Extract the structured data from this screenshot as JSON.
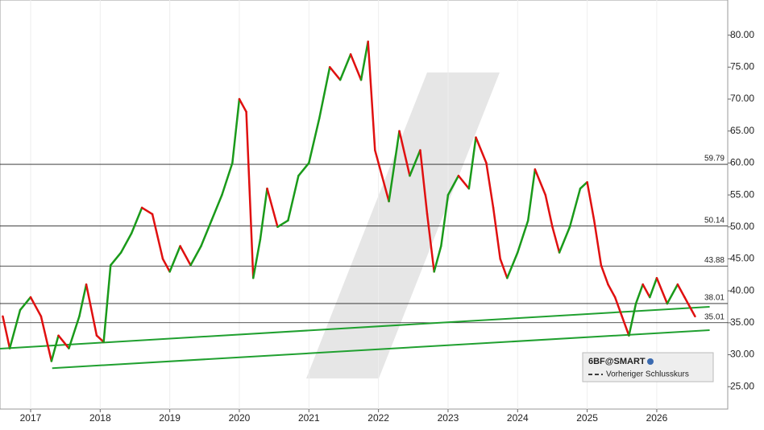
{
  "chart_data": {
    "type": "line",
    "legend_title": "6BF@SMART",
    "legend_item": "Vorheriger Schlusskurs",
    "x": [
      2016.6,
      2016.7,
      2016.85,
      2017.0,
      2017.15,
      2017.3,
      2017.4,
      2017.55,
      2017.7,
      2017.8,
      2017.95,
      2018.05,
      2018.15,
      2018.3,
      2018.45,
      2018.6,
      2018.75,
      2018.9,
      2019.0,
      2019.15,
      2019.3,
      2019.45,
      2019.6,
      2019.75,
      2019.9,
      2020.0,
      2020.1,
      2020.2,
      2020.3,
      2020.4,
      2020.55,
      2020.7,
      2020.85,
      2021.0,
      2021.15,
      2021.3,
      2021.45,
      2021.6,
      2021.75,
      2021.85,
      2021.95,
      2022.05,
      2022.15,
      2022.3,
      2022.45,
      2022.6,
      2022.7,
      2022.8,
      2022.9,
      2023.0,
      2023.15,
      2023.3,
      2023.4,
      2023.55,
      2023.65,
      2023.75,
      2023.85,
      2024.0,
      2024.15,
      2024.25,
      2024.4,
      2024.5,
      2024.6,
      2024.75,
      2024.9,
      2025.0,
      2025.1,
      2025.2,
      2025.3,
      2025.4,
      2025.5,
      2025.6,
      2025.7,
      2025.8,
      2025.9,
      2026.0,
      2026.15,
      2026.3,
      2026.4,
      2026.5,
      2026.55
    ],
    "series": [
      {
        "name": "6BF@SMART",
        "up_color": "#1a9a1a",
        "down_color": "#e01010",
        "values": [
          36,
          31,
          37,
          39,
          36,
          29,
          33,
          31,
          36,
          41,
          33,
          32,
          44,
          46,
          49,
          53,
          52,
          45,
          43,
          47,
          44,
          47,
          51,
          55,
          60,
          70,
          68,
          42,
          48,
          56,
          50,
          51,
          58,
          60,
          67,
          75,
          73,
          77,
          73,
          79,
          62,
          58,
          54,
          65,
          58,
          62,
          52,
          43,
          47,
          55,
          58,
          56,
          64,
          60,
          53,
          45,
          42,
          46,
          51,
          59,
          55,
          50,
          46,
          50,
          56,
          57,
          51,
          44,
          41,
          39,
          36,
          33,
          38,
          41,
          39,
          42,
          38,
          41,
          39,
          37,
          36
        ]
      }
    ],
    "levels": [
      {
        "value": 59.79,
        "label": "59.79"
      },
      {
        "value": 50.14,
        "label": "50.14"
      },
      {
        "value": 43.88,
        "label": "43.88"
      },
      {
        "value": 38.01,
        "label": "38.01"
      },
      {
        "value": 35.01,
        "label": "35.01"
      }
    ],
    "trendlines": [
      {
        "x": [
          2016.56,
          2026.76
        ],
        "values": [
          30.95,
          37.5
        ]
      },
      {
        "x": [
          2017.31,
          2026.76
        ],
        "values": [
          27.9,
          33.85
        ]
      }
    ],
    "trend_color": "#20a030",
    "xlim": [
      2016.56,
      2027.02
    ],
    "xticks": [
      2017,
      2018,
      2019,
      2020,
      2021,
      2022,
      2023,
      2024,
      2025,
      2026
    ],
    "ylim": [
      21.5,
      85.5
    ],
    "yticks": [
      {
        "value": 25,
        "label": "25.00"
      },
      {
        "value": 30,
        "label": "30.00"
      },
      {
        "value": 35,
        "label": "35.00"
      },
      {
        "value": 40,
        "label": "40.00"
      },
      {
        "value": 45,
        "label": "45.00"
      },
      {
        "value": 50,
        "label": "50.00"
      },
      {
        "value": 55,
        "label": "55.00"
      },
      {
        "value": 60,
        "label": "60.00"
      },
      {
        "value": 65,
        "label": "65.00"
      },
      {
        "value": 70,
        "label": "70.00"
      },
      {
        "value": 75,
        "label": "75.00"
      },
      {
        "value": 80,
        "label": "80.00"
      }
    ],
    "grid": true
  }
}
